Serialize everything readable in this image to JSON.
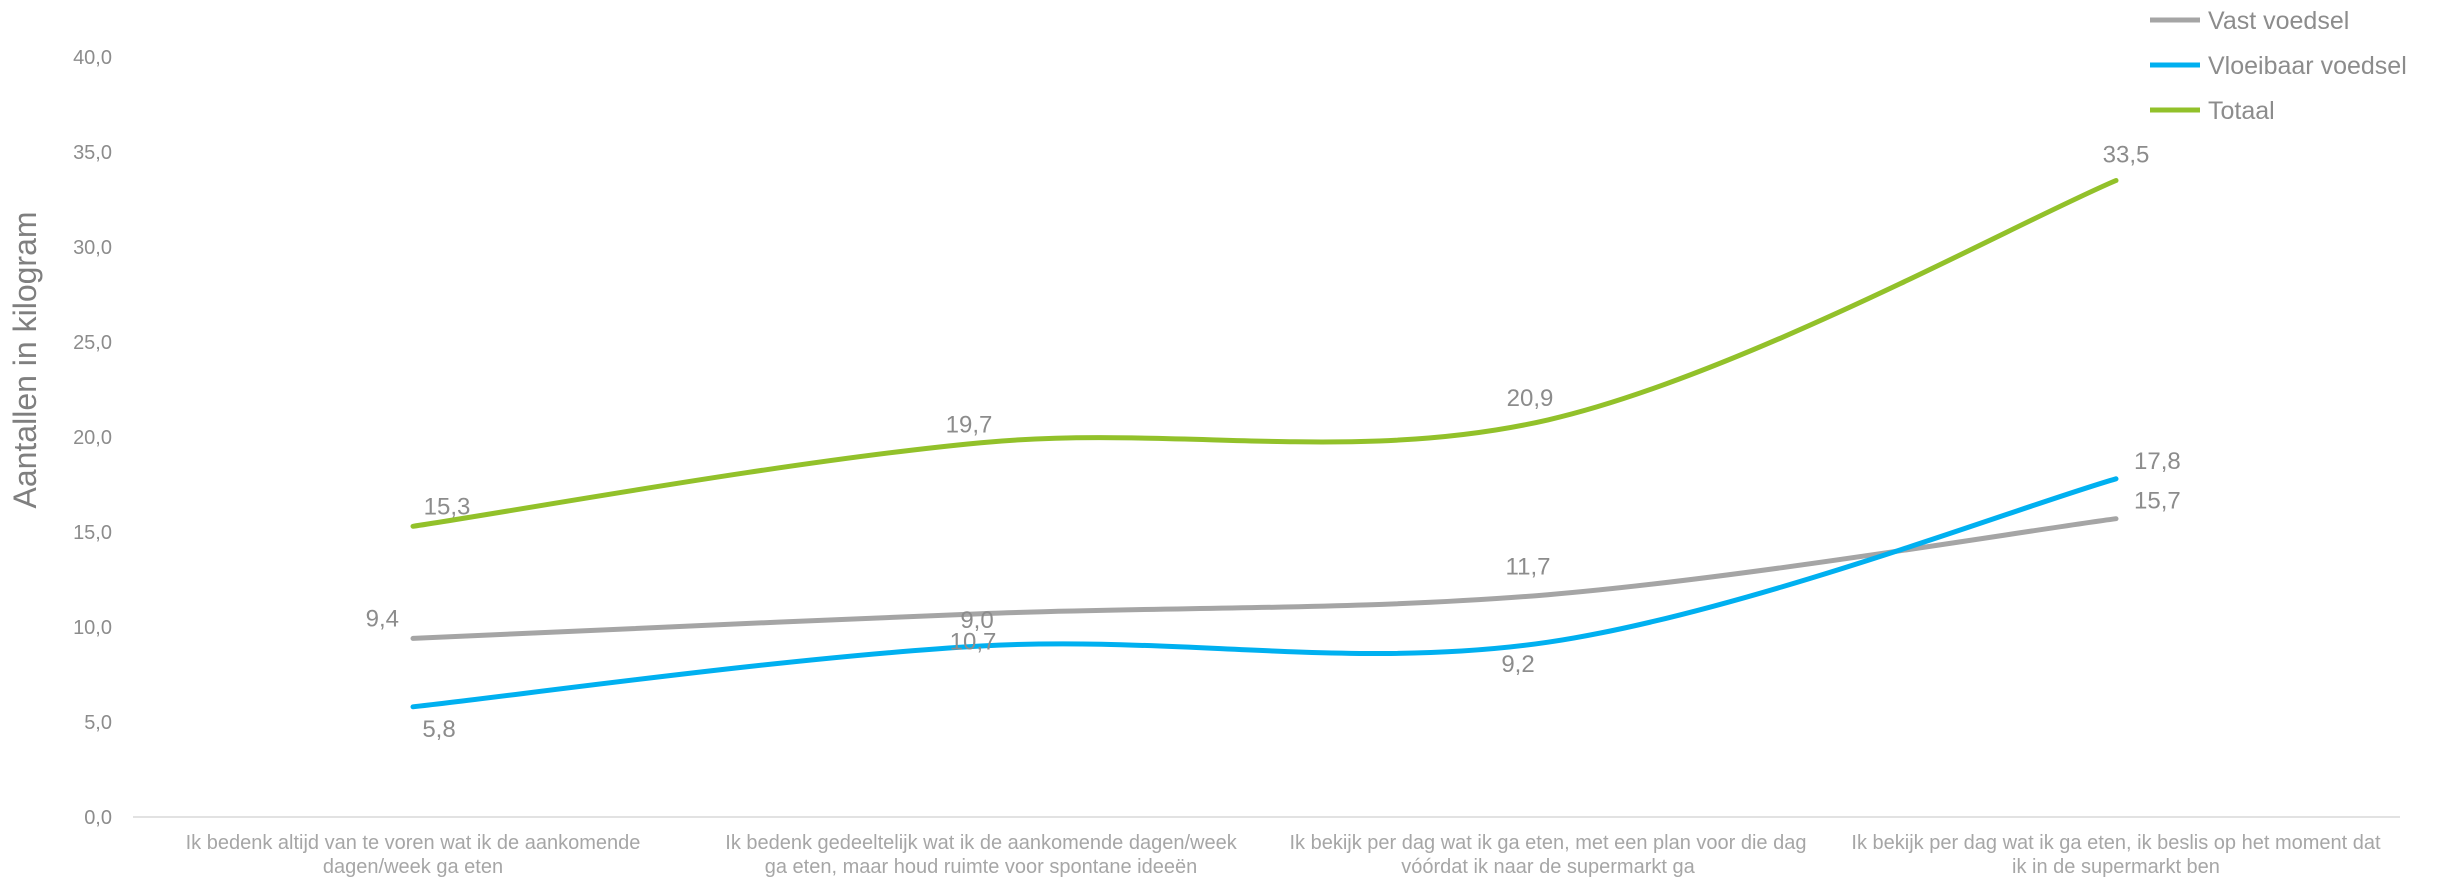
{
  "chart_data": {
    "type": "line",
    "ylabel": "Aantallen in kilogram",
    "ylim": [
      0,
      40
    ],
    "ytick_step": 5,
    "ytick_labels": [
      "0,0",
      "5,0",
      "10,0",
      "15,0",
      "20,0",
      "25,0",
      "30,0",
      "35,0",
      "40,0"
    ],
    "categories": [
      [
        "Ik bedenk altijd van te voren wat ik de aankomende",
        "dagen/week ga eten"
      ],
      [
        "Ik bedenk gedeeltelijk wat ik de aankomende dagen/week",
        "ga eten, maar houd ruimte voor spontane ideeën"
      ],
      [
        "Ik bekijk per dag wat ik ga eten, met een plan voor die dag",
        "vóórdat ik naar de supermarkt ga"
      ],
      [
        "Ik bekijk per dag wat ik ga eten, ik beslis op het moment dat",
        "ik in de supermarkt ben"
      ]
    ],
    "legend_position": "top-right",
    "grid": false,
    "series": [
      {
        "name": "Vast voedsel",
        "color": "#a5a5a5",
        "values": [
          9.4,
          10.7,
          11.7,
          15.7
        ],
        "labels": [
          "9,4",
          "10,7",
          "11,7",
          "15,7"
        ]
      },
      {
        "name": "Vloeibaar voedsel",
        "color": "#00b0f0",
        "values": [
          5.8,
          9.0,
          9.2,
          17.8
        ],
        "labels": [
          "5,8",
          "9,0",
          "9,2",
          "17,8"
        ]
      },
      {
        "name": "Totaal",
        "color": "#92c12a",
        "values": [
          15.3,
          19.7,
          20.9,
          33.5
        ],
        "labels": [
          "15,3",
          "19,7",
          "20,9",
          "33,5"
        ]
      }
    ]
  }
}
